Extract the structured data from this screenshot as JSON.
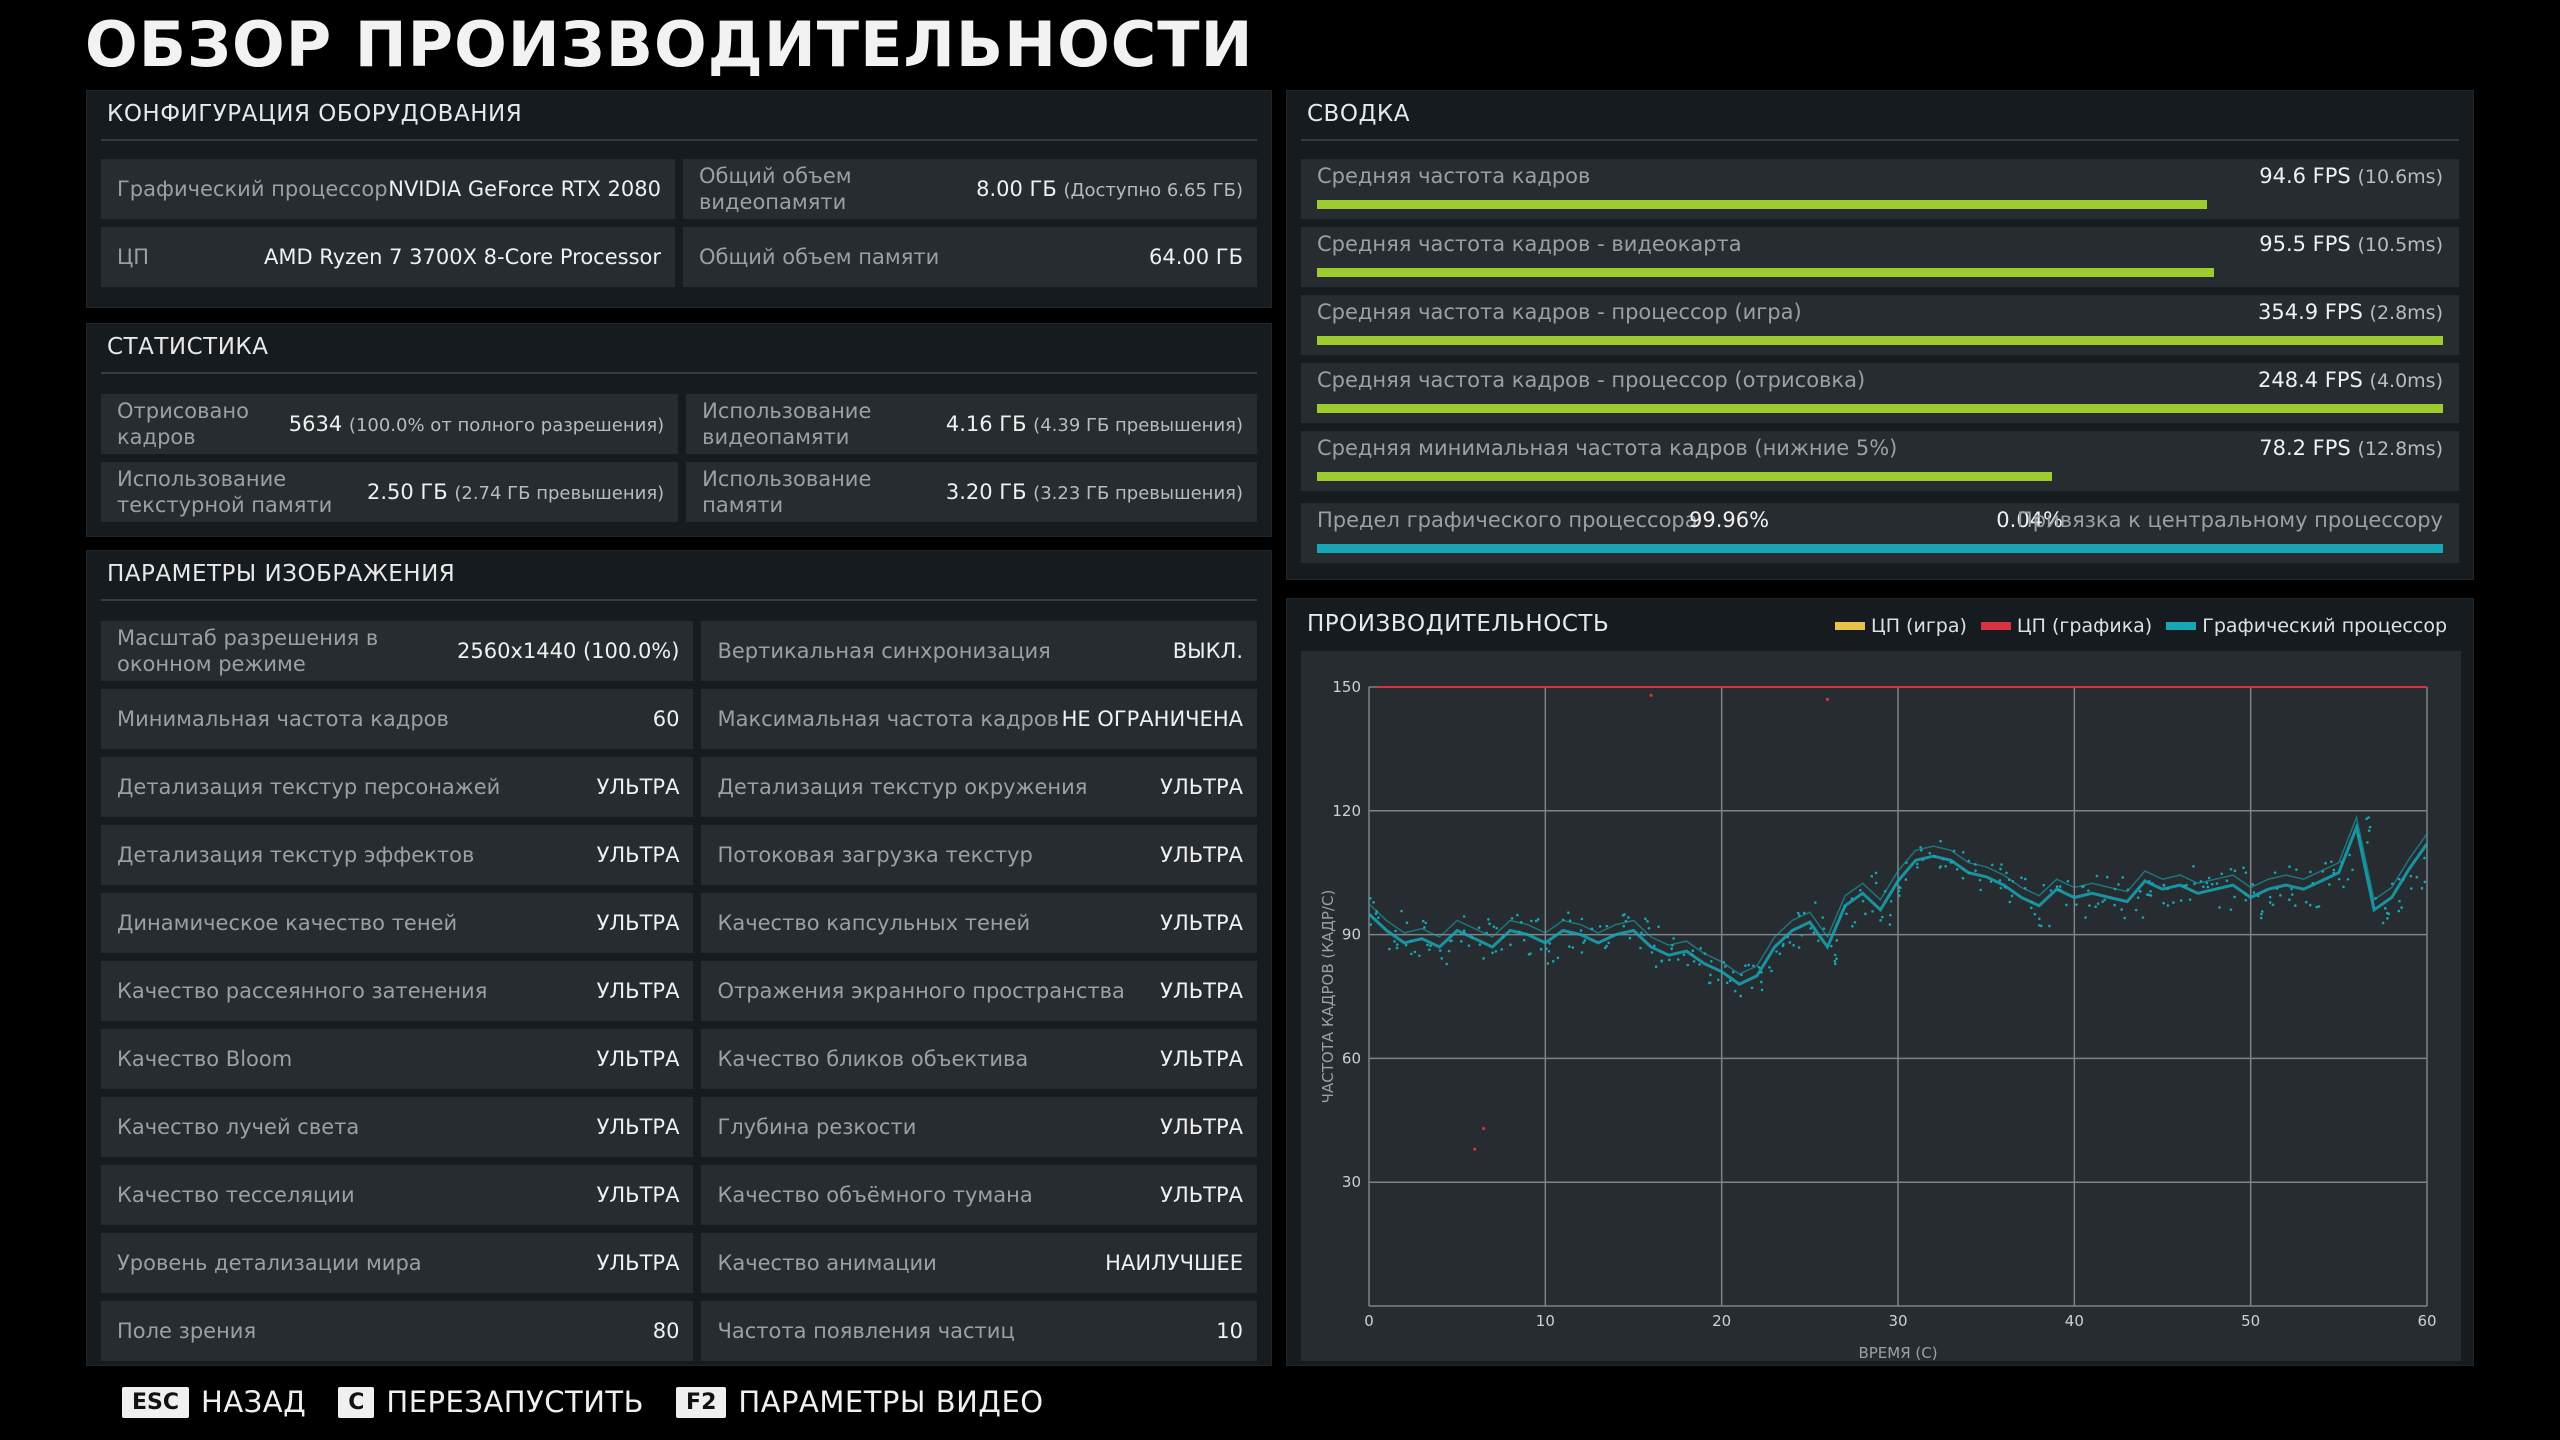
{
  "page_title": "ОБЗОР ПРОИЗВОДИТЕЛЬНОСТИ",
  "hardware": {
    "title": "КОНФИГУРАЦИЯ ОБОРУДОВАНИЯ",
    "gpu_label": "Графический процессор",
    "gpu_value": "NVIDIA GeForce RTX 2080",
    "vram_label": "Общий объем видеопамяти",
    "vram_value": "8.00 ГБ",
    "vram_sub": "(Доступно 6.65 ГБ)",
    "cpu_label": "ЦП",
    "cpu_value": "AMD Ryzen 7 3700X 8-Core Processor",
    "mem_label": "Общий объем памяти",
    "mem_value": "64.00 ГБ"
  },
  "stats": {
    "title": "СТАТИСТИКА",
    "rendered_label": "Отрисовано кадров",
    "rendered_value": "5634",
    "rendered_sub": "(100.0% от полного разрешения)",
    "vram_usage_label": "Использование видеопамяти",
    "vram_usage_value": "4.16 ГБ",
    "vram_usage_sub": "(4.39 ГБ превышения)",
    "texmem_label": "Использование текстурной памяти",
    "texmem_value": "2.50 ГБ",
    "texmem_sub": "(2.74 ГБ превышения)",
    "memusage_label": "Использование памяти",
    "memusage_value": "3.20 ГБ",
    "memusage_sub": "(3.23 ГБ превышения)"
  },
  "image_settings": {
    "title": "ПАРАМЕТРЫ ИЗОБРАЖЕНИЯ",
    "items": [
      {
        "label": "Масштаб разрешения в оконном режиме",
        "value": "2560x1440 (100.0%)"
      },
      {
        "label": "Вертикальная синхронизация",
        "value": "ВЫКЛ."
      },
      {
        "label": "Минимальная частота кадров",
        "value": "60"
      },
      {
        "label": "Максимальная частота кадров",
        "value": "НЕ ОГРАНИЧЕНА"
      },
      {
        "label": "Детализация текстур персонажей",
        "value": "УЛЬТРА"
      },
      {
        "label": "Детализация текстур окружения",
        "value": "УЛЬТРА"
      },
      {
        "label": "Детализация текстур эффектов",
        "value": "УЛЬТРА"
      },
      {
        "label": "Потоковая загрузка текстур",
        "value": "УЛЬТРА"
      },
      {
        "label": "Динамическое качество теней",
        "value": "УЛЬТРА"
      },
      {
        "label": "Качество капсульных теней",
        "value": "УЛЬТРА"
      },
      {
        "label": "Качество рассеянного затенения",
        "value": "УЛЬТРА"
      },
      {
        "label": "Отражения экранного пространства",
        "value": "УЛЬТРА"
      },
      {
        "label": "Качество Bloom",
        "value": "УЛЬТРА"
      },
      {
        "label": "Качество бликов объектива",
        "value": "УЛЬТРА"
      },
      {
        "label": "Качество лучей света",
        "value": "УЛЬТРА"
      },
      {
        "label": "Глубина резкости",
        "value": "УЛЬТРА"
      },
      {
        "label": "Качество тесселяции",
        "value": "УЛЬТРА"
      },
      {
        "label": "Качество объёмного тумана",
        "value": "УЛЬТРА"
      },
      {
        "label": "Уровень детализации мира",
        "value": "УЛЬТРА"
      },
      {
        "label": "Качество анимации",
        "value": "НАИЛУЧШЕЕ"
      },
      {
        "label": "Поле зрения",
        "value": "80"
      },
      {
        "label": "Частота появления частиц",
        "value": "10"
      }
    ]
  },
  "summary": {
    "title": "СВОДКА",
    "rows": [
      {
        "label": "Средняя частота кадров",
        "value": "94.6 FPS",
        "sub": "(10.6ms)",
        "fill": 0.79
      },
      {
        "label": "Средняя частота кадров - видеокарта",
        "value": "95.5 FPS",
        "sub": "(10.5ms)",
        "fill": 0.797
      },
      {
        "label": "Средняя частота кадров - процессор (игра)",
        "value": "354.9 FPS",
        "sub": "(2.8ms)",
        "fill": 1.0
      },
      {
        "label": "Средняя частота кадров - процессор (отрисовка)",
        "value": "248.4 FPS",
        "sub": "(4.0ms)",
        "fill": 1.0
      },
      {
        "label": "Средняя минимальная частота кадров (нижние 5%)",
        "value": "78.2 FPS",
        "sub": "(12.8ms)",
        "fill": 0.653
      }
    ],
    "bound_gpu_label": "Предел графического процессора",
    "bound_gpu_value": "99.96%",
    "bound_cpu_value": "0.04%",
    "bound_cpu_label": "Привязка к центральному процессору",
    "bound_fill": 0.9996,
    "colors": {
      "bar": "#9ccc2e",
      "bound": "#19a6b4"
    }
  },
  "chart_data": {
    "type": "scatter",
    "title": "ПРОИЗВОДИТЕЛЬНОСТЬ",
    "xlabel": "ВРЕМЯ (С)",
    "ylabel": "ЧАСТОТА КАДРОВ (КАДР/С)",
    "xlim": [
      0,
      60
    ],
    "ylim": [
      0,
      150
    ],
    "xticks": [
      "0",
      "10",
      "20",
      "30",
      "40",
      "50",
      "60"
    ],
    "yticks": [
      "150",
      "120",
      "90",
      "60",
      "30"
    ],
    "grid": true,
    "legend_position": "top-right",
    "series": [
      {
        "name": "ЦП (игра)",
        "color": "#e8c24a",
        "values": []
      },
      {
        "name": "ЦП (графика)",
        "color": "#d8313f",
        "values": [
          [
            0.5,
            150
          ],
          [
            60,
            150
          ],
          [
            6,
            38
          ],
          [
            6.5,
            43
          ],
          [
            16,
            148
          ],
          [
            26,
            147
          ]
        ]
      },
      {
        "name": "Графический процессор",
        "color": "#19a6b4",
        "points": [
          [
            0,
            95
          ],
          [
            1,
            91
          ],
          [
            2,
            88
          ],
          [
            3,
            89
          ],
          [
            4,
            87
          ],
          [
            5,
            91
          ],
          [
            6,
            89
          ],
          [
            7,
            87
          ],
          [
            8,
            91
          ],
          [
            9,
            90
          ],
          [
            10,
            88
          ],
          [
            11,
            91
          ],
          [
            12,
            90
          ],
          [
            13,
            88
          ],
          [
            14,
            90
          ],
          [
            15,
            91
          ],
          [
            16,
            87
          ],
          [
            17,
            85
          ],
          [
            18,
            86
          ],
          [
            19,
            83
          ],
          [
            20,
            81
          ],
          [
            21,
            78
          ],
          [
            22,
            80
          ],
          [
            23,
            87
          ],
          [
            24,
            91
          ],
          [
            25,
            93
          ],
          [
            26,
            87
          ],
          [
            27,
            97
          ],
          [
            28,
            100
          ],
          [
            29,
            96
          ],
          [
            30,
            103
          ],
          [
            31,
            108
          ],
          [
            32,
            109
          ],
          [
            33,
            108
          ],
          [
            34,
            105
          ],
          [
            35,
            104
          ],
          [
            36,
            102
          ],
          [
            37,
            99
          ],
          [
            38,
            97
          ],
          [
            39,
            101
          ],
          [
            40,
            99
          ],
          [
            41,
            100
          ],
          [
            42,
            99
          ],
          [
            43,
            98
          ],
          [
            44,
            103
          ],
          [
            45,
            101
          ],
          [
            46,
            102
          ],
          [
            47,
            100
          ],
          [
            48,
            101
          ],
          [
            49,
            102
          ],
          [
            50,
            99
          ],
          [
            51,
            101
          ],
          [
            52,
            102
          ],
          [
            53,
            101
          ],
          [
            54,
            103
          ],
          [
            55,
            105
          ],
          [
            56,
            116
          ],
          [
            57,
            96
          ],
          [
            58,
            99
          ],
          [
            59,
            106
          ],
          [
            60,
            112
          ]
        ]
      }
    ]
  },
  "footer": {
    "back_key": "ESC",
    "back_label": "НАЗАД",
    "restart_key": "C",
    "restart_label": "ПЕРЕЗАПУСТИТЬ",
    "video_key": "F2",
    "video_label": "ПАРАМЕТРЫ ВИДЕО"
  }
}
